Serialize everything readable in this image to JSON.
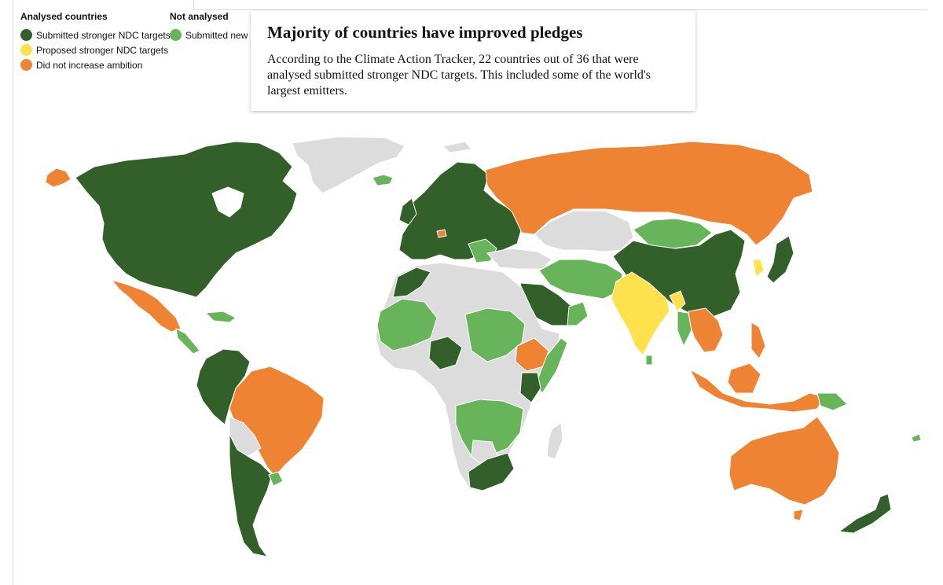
{
  "legend": {
    "analysed": {
      "heading": "Analysed countries",
      "items": [
        {
          "label": "Submitted stronger NDC targets",
          "color": "#33602a"
        },
        {
          "label": "Proposed stronger NDC targets",
          "color": "#ffe14d"
        },
        {
          "label": "Did not increase ambition",
          "color": "#ee8433"
        }
      ]
    },
    "not_analysed": {
      "heading": "Not analysed",
      "items": [
        {
          "label": "Submitted new N",
          "color": "#68b45b"
        }
      ]
    }
  },
  "callout": {
    "title": "Majority of countries have improved pledges",
    "body": "According to the Climate Action Tracker, 22 countries out of 36 that were analysed submitted stronger NDC targets. This included some of the world's largest emitters."
  },
  "colors": {
    "stronger": "#33602a",
    "proposed": "#ffe14d",
    "no_increase": "#ee8433",
    "new_ndc": "#68b45b",
    "no_data": "#dcdcdc",
    "border": "#ffffff"
  }
}
